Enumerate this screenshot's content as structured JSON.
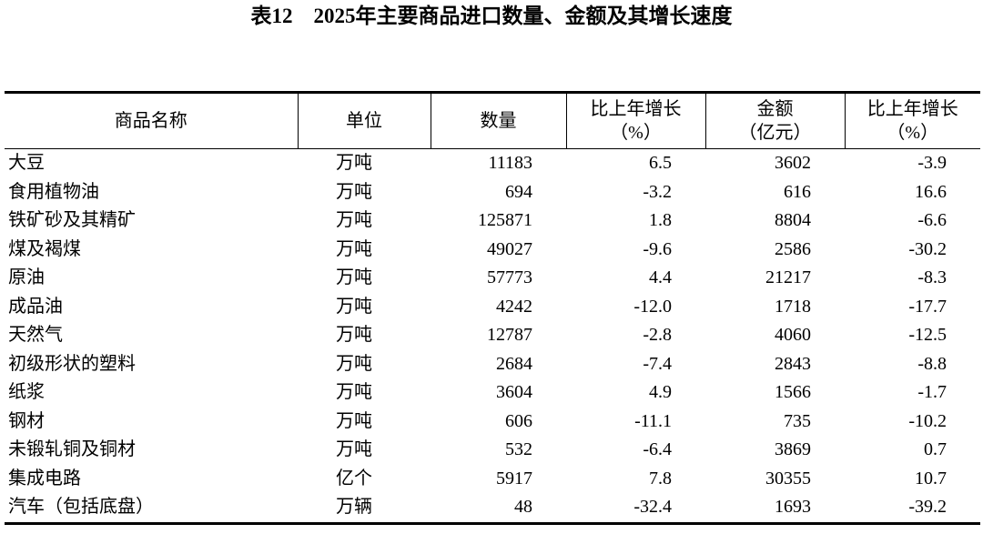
{
  "title": "表12　2025年主要商品进口数量、金额及其增长速度",
  "table": {
    "header": [
      [
        "商品名称"
      ],
      [
        "单位"
      ],
      [
        "数量"
      ],
      [
        "比上年增长",
        "（%）"
      ],
      [
        "金额",
        "（亿元）"
      ],
      [
        "比上年增长",
        "（%）"
      ]
    ],
    "rows": [
      [
        "大豆",
        "万吨",
        "11183",
        "6.5",
        "3602",
        "-3.9"
      ],
      [
        "食用植物油",
        "万吨",
        "694",
        "-3.2",
        "616",
        "16.6"
      ],
      [
        "铁矿砂及其精矿",
        "万吨",
        "125871",
        "1.8",
        "8804",
        "-6.6"
      ],
      [
        "煤及褐煤",
        "万吨",
        "49027",
        "-9.6",
        "2586",
        "-30.2"
      ],
      [
        "原油",
        "万吨",
        "57773",
        "4.4",
        "21217",
        "-8.3"
      ],
      [
        "成品油",
        "万吨",
        "4242",
        "-12.0",
        "1718",
        "-17.7"
      ],
      [
        "天然气",
        "万吨",
        "12787",
        "-2.8",
        "4060",
        "-12.5"
      ],
      [
        "初级形状的塑料",
        "万吨",
        "2684",
        "-7.4",
        "2843",
        "-8.8"
      ],
      [
        "纸浆",
        "万吨",
        "3604",
        "4.9",
        "1566",
        "-1.7"
      ],
      [
        "钢材",
        "万吨",
        "606",
        "-11.1",
        "735",
        "-10.2"
      ],
      [
        "未锻轧铜及铜材",
        "万吨",
        "532",
        "-6.4",
        "3869",
        "0.7"
      ],
      [
        "集成电路",
        "亿个",
        "5917",
        "7.8",
        "30355",
        "10.7"
      ],
      [
        "汽车（包括底盘）",
        "万辆",
        "48",
        "-32.4",
        "1693",
        "-39.2"
      ]
    ]
  }
}
